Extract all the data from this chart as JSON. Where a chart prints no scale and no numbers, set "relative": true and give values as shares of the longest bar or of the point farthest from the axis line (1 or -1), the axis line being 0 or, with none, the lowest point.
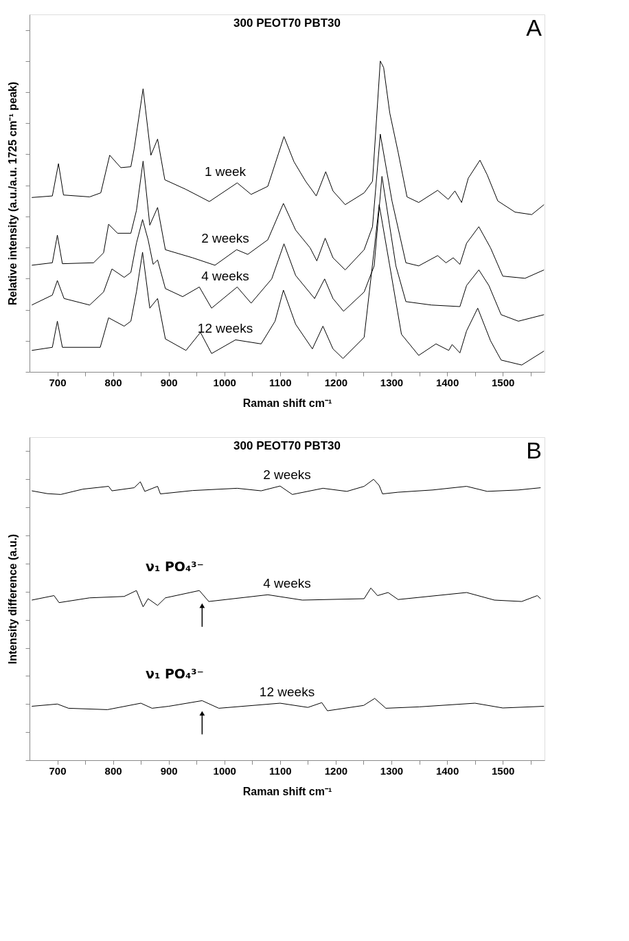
{
  "chart_data": [
    {
      "type": "line",
      "title": "300 PEOT70 PBT30",
      "xlabel": "Raman shift cm⁻¹",
      "ylabel": "Relative intensity (a.u./a.u. 1725 cm⁻¹ peak)",
      "relative": true,
      "line_style": "solid",
      "grid": false,
      "xlim": [
        650,
        1575
      ],
      "xticks": [
        700,
        {
          "value": 750,
          "label": null
        },
        800,
        {
          "value": 850,
          "label": null
        },
        900,
        {
          "value": 950,
          "label": null
        },
        1000,
        {
          "value": 1050,
          "label": null
        },
        1100,
        {
          "value": 1150,
          "label": null
        },
        1200,
        {
          "value": 1250,
          "label": null
        },
        1300,
        {
          "value": 1350,
          "label": null
        },
        1400,
        {
          "value": 1450,
          "label": null
        },
        1500,
        {
          "value": 1550,
          "label": null
        }
      ],
      "annotations": [
        "A"
      ],
      "series": [
        {
          "name": "1 week",
          "color": "#000000",
          "x": [
            654,
            691,
            702,
            711,
            758,
            778,
            794,
            814,
            832,
            838,
            854,
            868,
            880,
            893,
            931,
            973,
            1023,
            1048,
            1078,
            1107,
            1125,
            1146,
            1165,
            1182,
            1195,
            1217,
            1251,
            1266,
            1280,
            1286,
            1297,
            1312,
            1328,
            1349,
            1383,
            1402,
            1414,
            1426,
            1438,
            1459,
            1472,
            1491,
            1522,
            1552,
            1574
          ],
          "values": [
            0.561,
            0.566,
            0.67,
            0.569,
            0.563,
            0.576,
            0.697,
            0.657,
            0.66,
            0.718,
            0.911,
            0.697,
            0.749,
            0.618,
            0.587,
            0.548,
            0.608,
            0.571,
            0.597,
            0.757,
            0.676,
            0.613,
            0.566,
            0.644,
            0.582,
            0.538,
            0.576,
            0.613,
            1.0,
            0.979,
            0.833,
            0.707,
            0.563,
            0.545,
            0.584,
            0.555,
            0.582,
            0.545,
            0.623,
            0.681,
            0.634,
            0.55,
            0.514,
            0.506,
            0.538
          ]
        },
        {
          "name": "2 weeks",
          "color": "#000000",
          "x": [
            654,
            691,
            700,
            709,
            765,
            783,
            792,
            808,
            832,
            842,
            854,
            866,
            880,
            894,
            943,
            983,
            1022,
            1042,
            1078,
            1106,
            1128,
            1154,
            1166,
            1181,
            1195,
            1217,
            1251,
            1266,
            1280,
            1301,
            1326,
            1349,
            1383,
            1398,
            1411,
            1423,
            1435,
            1457,
            1478,
            1500,
            1540,
            1574
          ],
          "values": [
            0.343,
            0.351,
            0.44,
            0.348,
            0.351,
            0.383,
            0.475,
            0.446,
            0.446,
            0.519,
            0.678,
            0.472,
            0.529,
            0.393,
            0.367,
            0.343,
            0.393,
            0.378,
            0.425,
            0.542,
            0.456,
            0.399,
            0.357,
            0.43,
            0.367,
            0.328,
            0.393,
            0.467,
            0.765,
            0.55,
            0.351,
            0.341,
            0.374,
            0.351,
            0.367,
            0.346,
            0.414,
            0.467,
            0.399,
            0.308,
            0.301,
            0.328
          ]
        },
        {
          "name": "4 weeks",
          "color": "#000000",
          "x": [
            654,
            691,
            700,
            712,
            758,
            783,
            798,
            820,
            832,
            842,
            853,
            863,
            872,
            880,
            894,
            925,
            955,
            977,
            1023,
            1048,
            1085,
            1107,
            1128,
            1162,
            1180,
            1195,
            1214,
            1251,
            1269,
            1283,
            1308,
            1326,
            1372,
            1423,
            1435,
            1457,
            1475,
            1497,
            1528,
            1574
          ],
          "values": [
            0.215,
            0.247,
            0.294,
            0.236,
            0.215,
            0.257,
            0.331,
            0.304,
            0.32,
            0.414,
            0.49,
            0.425,
            0.346,
            0.36,
            0.268,
            0.242,
            0.273,
            0.205,
            0.273,
            0.221,
            0.299,
            0.412,
            0.31,
            0.236,
            0.299,
            0.236,
            0.195,
            0.257,
            0.341,
            0.629,
            0.341,
            0.226,
            0.215,
            0.21,
            0.278,
            0.328,
            0.278,
            0.184,
            0.163,
            0.184
          ]
        },
        {
          "name": "12 weeks",
          "color": "#000000",
          "x": [
            654,
            691,
            700,
            709,
            777,
            792,
            820,
            832,
            842,
            853,
            866,
            880,
            894,
            931,
            957,
            977,
            1020,
            1066,
            1091,
            1106,
            1128,
            1158,
            1177,
            1195,
            1213,
            1251,
            1269,
            1278,
            1297,
            1318,
            1349,
            1380,
            1403,
            1409,
            1423,
            1435,
            1455,
            1478,
            1497,
            1534,
            1574
          ],
          "values": [
            0.069,
            0.079,
            0.163,
            0.079,
            0.079,
            0.174,
            0.147,
            0.163,
            0.257,
            0.385,
            0.205,
            0.236,
            0.106,
            0.069,
            0.127,
            0.059,
            0.103,
            0.09,
            0.163,
            0.263,
            0.153,
            0.074,
            0.147,
            0.074,
            0.043,
            0.111,
            0.393,
            0.538,
            0.341,
            0.121,
            0.053,
            0.09,
            0.069,
            0.088,
            0.061,
            0.132,
            0.205,
            0.1,
            0.038,
            0.022,
            0.067
          ]
        }
      ]
    },
    {
      "type": "line",
      "title": "300 PEOT70 PBT30",
      "xlabel": "Raman shift cm⁻¹",
      "ylabel": "Intensity difference (a.u.)",
      "relative": true,
      "line_style": "solid",
      "grid": false,
      "xlim": [
        650,
        1575
      ],
      "xticks": [
        700,
        {
          "value": 750,
          "label": null
        },
        800,
        {
          "value": 850,
          "label": null
        },
        900,
        {
          "value": 950,
          "label": null
        },
        1000,
        {
          "value": 1050,
          "label": null
        },
        1100,
        {
          "value": 1150,
          "label": null
        },
        1200,
        {
          "value": 1250,
          "label": null
        },
        1300,
        {
          "value": 1350,
          "label": null
        },
        1400,
        {
          "value": 1450,
          "label": null
        },
        1500,
        {
          "value": 1550,
          "label": null
        }
      ],
      "annotations": [
        "B",
        {
          "text": "ν₁ PO₄³⁻",
          "x": 960,
          "y": 0.595
        },
        {
          "text": "ν₁ PO₄³⁻",
          "x": 960,
          "y": 0.212
        }
      ],
      "series": [
        {
          "name": "2 weeks",
          "color": "#000000",
          "x": [
            654,
            682,
            706,
            746,
            792,
            798,
            838,
            849,
            857,
            880,
            885,
            943,
            1023,
            1066,
            1100,
            1122,
            1177,
            1220,
            1251,
            1268,
            1278,
            1284,
            1312,
            1374,
            1435,
            1472,
            1528,
            1568
          ],
          "values": [
            0.959,
            0.949,
            0.946,
            0.965,
            0.975,
            0.959,
            0.97,
            0.991,
            0.957,
            0.975,
            0.948,
            0.96,
            0.968,
            0.959,
            0.976,
            0.946,
            0.968,
            0.957,
            0.975,
            1.0,
            0.978,
            0.948,
            0.954,
            0.962,
            0.975,
            0.957,
            0.962,
            0.97
          ]
        },
        {
          "name": "4 weeks",
          "color": "#000000",
          "x": [
            654,
            694,
            703,
            758,
            820,
            842,
            854,
            863,
            880,
            894,
            955,
            972,
            1078,
            1140,
            1251,
            1263,
            1275,
            1294,
            1312,
            1435,
            1485,
            1534,
            1562,
            1568
          ],
          "values": [
            0.57,
            0.586,
            0.561,
            0.578,
            0.583,
            0.604,
            0.546,
            0.575,
            0.551,
            0.578,
            0.604,
            0.565,
            0.589,
            0.57,
            0.575,
            0.613,
            0.586,
            0.597,
            0.572,
            0.597,
            0.57,
            0.565,
            0.586,
            0.575
          ]
        },
        {
          "name": "12 weeks",
          "color": "#000000",
          "x": [
            654,
            700,
            720,
            790,
            850,
            870,
            900,
            960,
            990,
            1100,
            1150,
            1175,
            1185,
            1250,
            1270,
            1290,
            1350,
            1450,
            1500,
            1574
          ],
          "values": [
            0.192,
            0.2,
            0.185,
            0.18,
            0.203,
            0.185,
            0.192,
            0.212,
            0.185,
            0.203,
            0.188,
            0.205,
            0.176,
            0.195,
            0.22,
            0.185,
            0.19,
            0.203,
            0.186,
            0.192
          ]
        }
      ]
    }
  ]
}
